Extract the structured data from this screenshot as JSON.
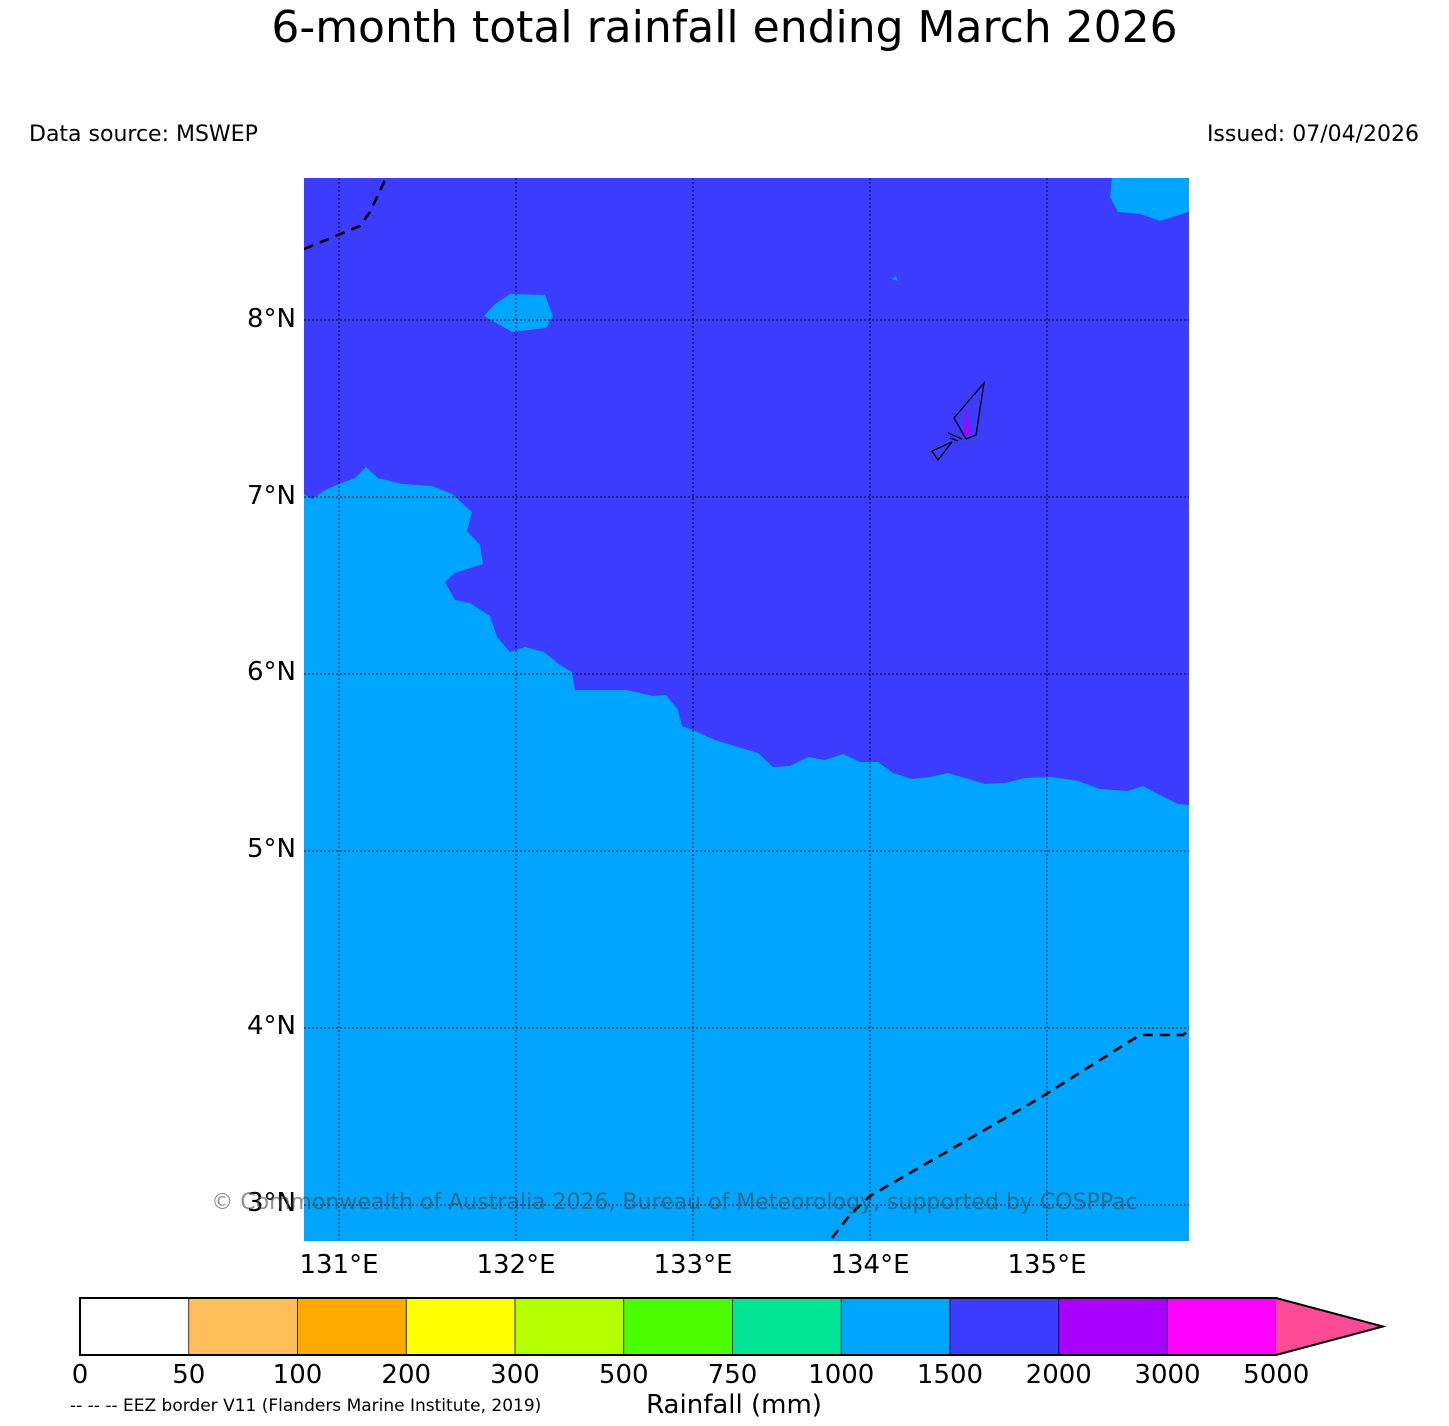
{
  "title": "6-month total rainfall ending March 2026",
  "source": "Data source: MSWEP",
  "issued": "Issued: 07/04/2026",
  "copyright": "© Commonwealth of Australia 2026, Bureau of Meteorology, supported by COSPPac",
  "eez_note": "-- -- -- EEZ border V11 (Flanders Marine Institute, 2019)",
  "colors": {
    "range_1000_1500": "#00a5ff",
    "range_1500_2000": "#3c3cff",
    "range_2000_3000": "#aa00ff"
  },
  "map": {
    "lat_labels": [
      "8°N",
      "7°N",
      "6°N",
      "5°N",
      "4°N",
      "3°N"
    ],
    "lon_labels": [
      "131°E",
      "132°E",
      "133°E",
      "134°E",
      "135°E"
    ]
  },
  "colorbar": {
    "title": "Rainfall (mm)",
    "ticks": [
      "0",
      "50",
      "100",
      "200",
      "300",
      "500",
      "750",
      "1000",
      "1500",
      "2000",
      "3000",
      "5000"
    ],
    "colors": [
      "#ffffff",
      "#ffbe5a",
      "#ffaa00",
      "#ffff00",
      "#b4ff00",
      "#4bff00",
      "#00e696",
      "#00a5ff",
      "#3c3cff",
      "#aa00ff",
      "#ff00ff"
    ],
    "extend_color": "#ff4b96"
  }
}
